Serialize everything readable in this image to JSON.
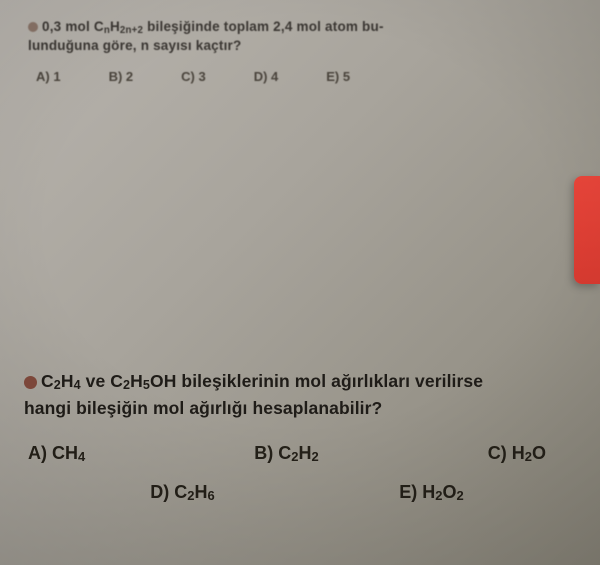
{
  "q1": {
    "line1_a": "0,3 mol C",
    "line1_sub1": "n",
    "line1_b": "H",
    "line1_sub2": "2n+2",
    "line1_c": " bileşiğinde toplam 2,4 mol atom bu-",
    "line2": "lunduğuna göre, n sayısı kaçtır?",
    "options": {
      "a": "A) 1",
      "b": "B) 2",
      "c": "C) 3",
      "d": "D) 4",
      "e": "E) 5"
    }
  },
  "q2": {
    "line1_a": "C",
    "line1_s1": "2",
    "line1_b": "H",
    "line1_s2": "4",
    "line1_c": " ve C",
    "line1_s3": "2",
    "line1_d": "H",
    "line1_s4": "5",
    "line1_e": "OH bileşiklerinin mol ağırlıkları verilirse",
    "line2": "hangi bileşiğin mol ağırlığı hesaplanabilir?",
    "opts": {
      "a_pre": "A) CH",
      "a_sub": "4",
      "b_pre": "B) C",
      "b_s1": "2",
      "b_mid": "H",
      "b_s2": "2",
      "c_pre": "C) H",
      "c_s1": "2",
      "c_mid": "O",
      "d_pre": "D) C",
      "d_s1": "2",
      "d_mid": "H",
      "d_s2": "6",
      "e_pre": "E) H",
      "e_s1": "2",
      "e_mid": "O",
      "e_s2": "2"
    }
  }
}
